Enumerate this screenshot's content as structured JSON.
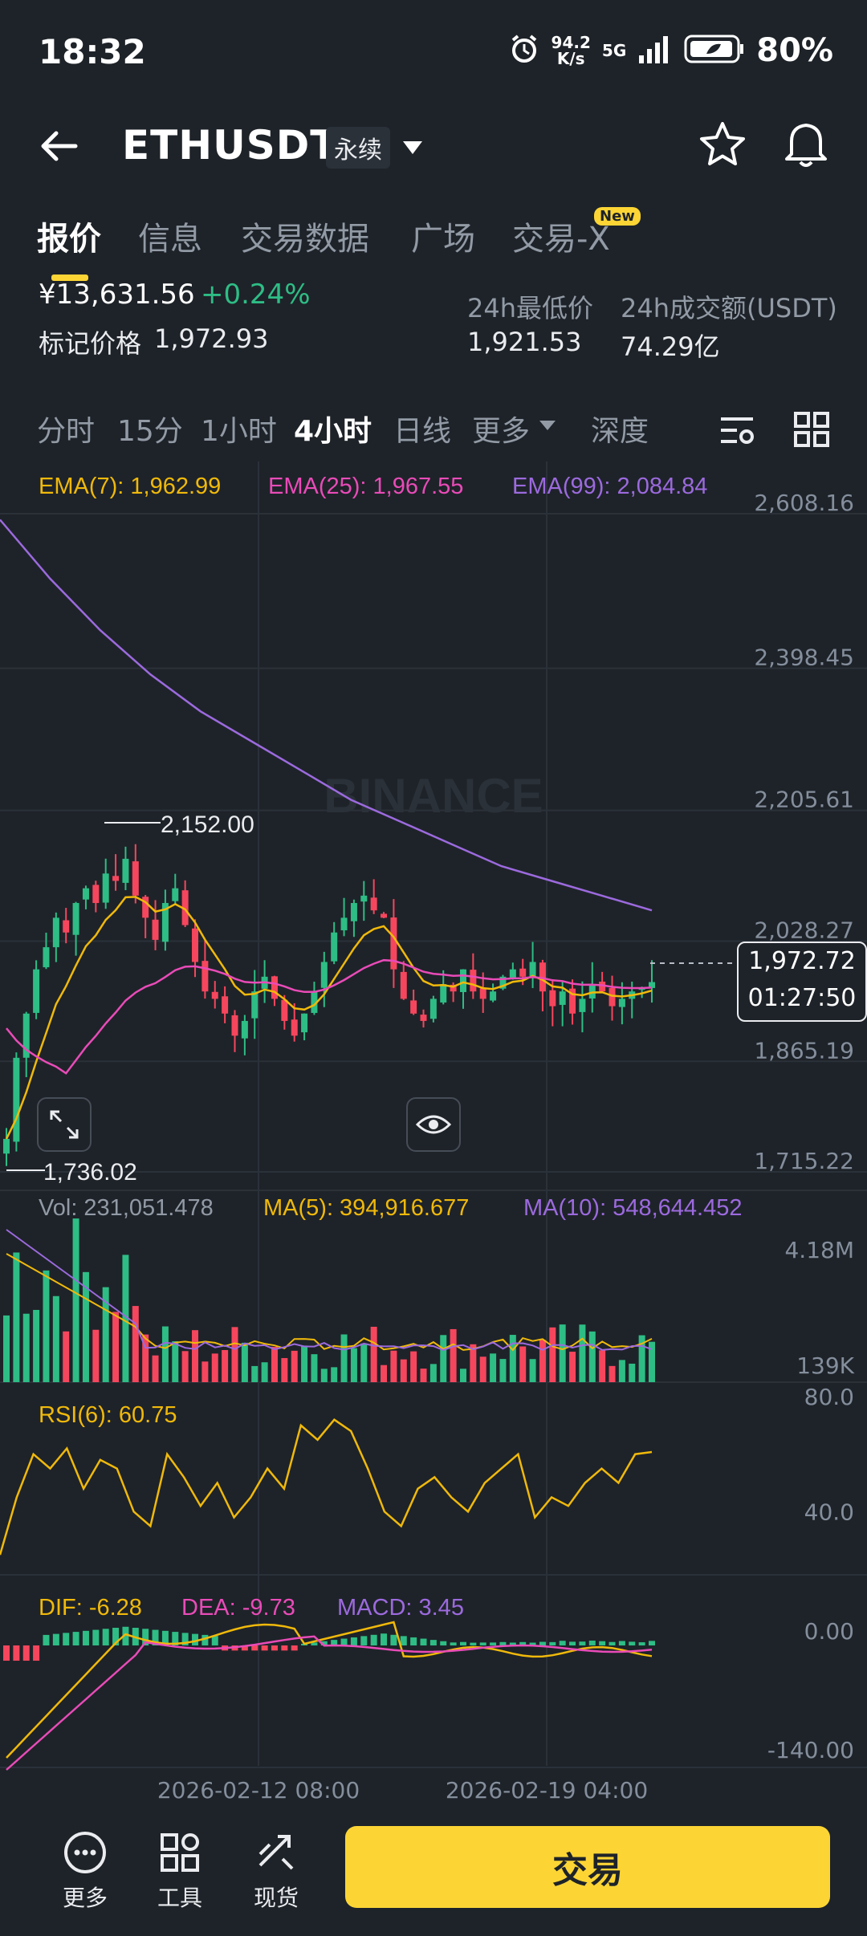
{
  "status_bar": {
    "time": "18:32",
    "net_speed": "94.2",
    "net_unit": "K/s",
    "signal": "5G",
    "battery": "80%"
  },
  "header": {
    "pair": "ETHUSDT",
    "contract_type": "永续"
  },
  "tabs": [
    {
      "label": "报价",
      "active": true
    },
    {
      "label": "信息"
    },
    {
      "label": "交易数据"
    },
    {
      "label": "广场"
    },
    {
      "label": "交易-X",
      "badge": "New"
    }
  ],
  "price": {
    "last_price": "¥13,631.56",
    "change_pct": "+0.24%",
    "mark_label": "标记价格",
    "mark_value": "1,972.93",
    "low_label": "24h最低价",
    "low_value": "1,921.53",
    "vol_label": "24h成交额(USDT)",
    "vol_value": "74.29亿"
  },
  "timeframes": [
    "分时",
    "15分",
    "1小时",
    "4小时",
    "日线",
    "更多",
    "深度"
  ],
  "active_timeframe": "4小时",
  "indicators": {
    "ema7": "EMA(7): 1,962.99",
    "ema25": "EMA(25): 1,967.55",
    "ema99": "EMA(99): 2,084.84",
    "vol": "Vol: 231,051.478",
    "ma5": "MA(5): 394,916.677",
    "ma10": "MA(10): 548,644.452",
    "rsi": "RSI(6): 60.75",
    "dif": "DIF: -6.28",
    "dea": "DEA: -9.73",
    "macd": "MACD: 3.45"
  },
  "annotations": {
    "high": "2,152.00",
    "low": "1,736.02",
    "current_price": "1,972.72",
    "countdown": "01:27:50",
    "watermark": "BINANCE"
  },
  "bottom_nav": {
    "more": "更多",
    "tools": "工具",
    "spot": "现货",
    "trade": "交易"
  },
  "colors": {
    "up": "#2ebd85",
    "down": "#f6465d",
    "ema7": "#f0b90b",
    "ema25": "#e94bb8",
    "ema99": "#9c6ade",
    "accent": "#fcd535"
  },
  "chart_data": {
    "type": "candlestick",
    "price_axis_ticks": [
      "2,608.16",
      "2,398.45",
      "2,205.61",
      "2,028.27",
      "1,865.19",
      "1,715.22"
    ],
    "volume_axis_ticks": [
      "4.18M",
      "139K"
    ],
    "rsi_axis_ticks": [
      "80.0",
      "40.0"
    ],
    "macd_axis_ticks": [
      "0.00",
      "-140.00"
    ],
    "x_ticks": [
      "2026-02-12 08:00",
      "2026-02-19 04:00"
    ],
    "ylim": [
      1715.22,
      2608.16
    ],
    "closes": [
      1760,
      1870,
      1930,
      1990,
      2020,
      2060,
      2040,
      2080,
      2100,
      2080,
      2120,
      2110,
      2140,
      2090,
      2060,
      2030,
      2080,
      2100,
      2050,
      2000,
      1960,
      1950,
      1930,
      1900,
      1920,
      1960,
      1980,
      1950,
      1920,
      1900,
      1930,
      1960,
      2000,
      2040,
      2060,
      2080,
      2090,
      2070,
      2060,
      1990,
      1950,
      1930,
      1920,
      1950,
      1970,
      1960,
      1990,
      1960,
      1950,
      1960,
      1980,
      1990,
      1980,
      2000,
      1960,
      1940,
      1960,
      1930,
      1950,
      1970,
      1960,
      1940,
      1950,
      1960,
      1965,
      1972.72
    ],
    "ema99": [
      2600,
      2520,
      2450,
      2390,
      2340,
      2300,
      2260,
      2220,
      2190,
      2160,
      2130,
      2110,
      2090,
      2070
    ],
    "rsi": [
      25,
      45,
      60,
      55,
      62,
      48,
      58,
      55,
      40,
      35,
      60,
      52,
      42,
      50,
      38,
      45,
      55,
      48,
      70,
      65,
      72,
      68,
      55,
      40,
      35,
      48,
      52,
      45,
      40,
      50,
      55,
      60,
      38,
      45,
      42,
      50,
      55,
      50,
      60
    ],
    "rsi_last": 60.75,
    "dif_last": -6.28,
    "dea_last": -9.73,
    "macd_last": 3.45
  }
}
